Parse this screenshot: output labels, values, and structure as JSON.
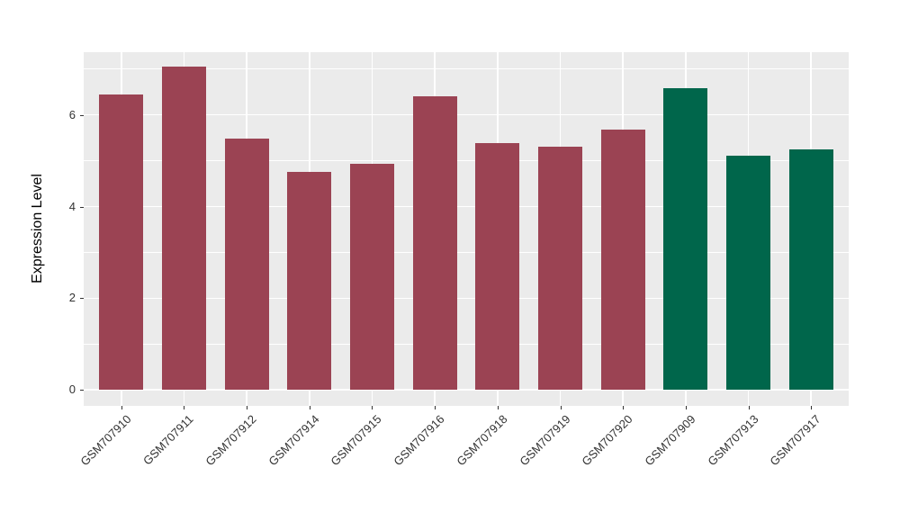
{
  "chart_data": {
    "type": "bar",
    "title": "",
    "xlabel": "",
    "ylabel": "Expression Level",
    "categories": [
      "GSM707910",
      "GSM707911",
      "GSM707912",
      "GSM707914",
      "GSM707915",
      "GSM707916",
      "GSM707918",
      "GSM707919",
      "GSM707920",
      "GSM707909",
      "GSM707913",
      "GSM707917"
    ],
    "values": [
      6.45,
      7.05,
      5.49,
      4.76,
      4.93,
      6.41,
      5.39,
      5.3,
      5.68,
      6.58,
      5.11,
      5.25
    ],
    "bar_groups": [
      "red",
      "red",
      "red",
      "red",
      "red",
      "red",
      "red",
      "red",
      "red",
      "green",
      "green",
      "green"
    ],
    "group_colors": {
      "red": "#9B4353",
      "green": "#00664B"
    },
    "y_ticks": [
      "0",
      "2",
      "4",
      "6"
    ],
    "y_tick_values": [
      0,
      2,
      4,
      6
    ],
    "y_minor_tick_values": [
      1,
      3,
      5,
      7
    ],
    "ylim": [
      -0.35,
      7.37
    ],
    "x_label_rotation_deg": 45,
    "legend": "none",
    "grid": "on",
    "panel_bg": "#EBEBEB",
    "grid_color": "#FFFFFF",
    "axis_text_color": "#333333"
  }
}
